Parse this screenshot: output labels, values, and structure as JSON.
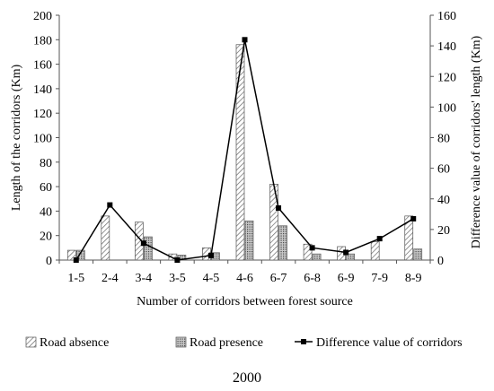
{
  "chart_data": {
    "type": "bar",
    "caption": "2000",
    "xlabel": "Number of corridors between forest source",
    "ylabel": "Length of the corridors (Km)",
    "y2label": "Difference value of corridors' length (Km)",
    "ylim": [
      0,
      200
    ],
    "yticks": [
      "0",
      "20",
      "40",
      "60",
      "80",
      "100",
      "120",
      "140",
      "160",
      "180",
      "200"
    ],
    "y2lim": [
      0,
      160
    ],
    "y2ticks": [
      "0",
      "20",
      "40",
      "60",
      "80",
      "100",
      "120",
      "140",
      "160"
    ],
    "categories": [
      "1-5",
      "2-4",
      "3-4",
      "3-5",
      "4-5",
      "4-6",
      "6-7",
      "6-8",
      "6-9",
      "7-9",
      "8-9"
    ],
    "series": [
      {
        "name": "Road absence",
        "kind": "bar",
        "pattern": "diagonal-hatch",
        "axis": "left",
        "values": [
          8,
          36,
          31,
          5,
          10,
          176,
          62,
          13,
          11,
          15,
          36
        ]
      },
      {
        "name": "Road presence",
        "kind": "bar",
        "pattern": "dots",
        "axis": "left",
        "values": [
          8,
          0,
          19,
          4,
          6,
          32,
          28,
          5,
          5,
          0,
          9
        ]
      },
      {
        "name": "Difference value of corridors",
        "kind": "line",
        "marker": "square",
        "axis": "right",
        "values": [
          0,
          36,
          11,
          0,
          3,
          144,
          34,
          8,
          5,
          14,
          27
        ]
      }
    ],
    "grid": false,
    "legend_position": "bottom",
    "colors": {
      "line": "#000000",
      "bar_outline": "#555555"
    }
  }
}
